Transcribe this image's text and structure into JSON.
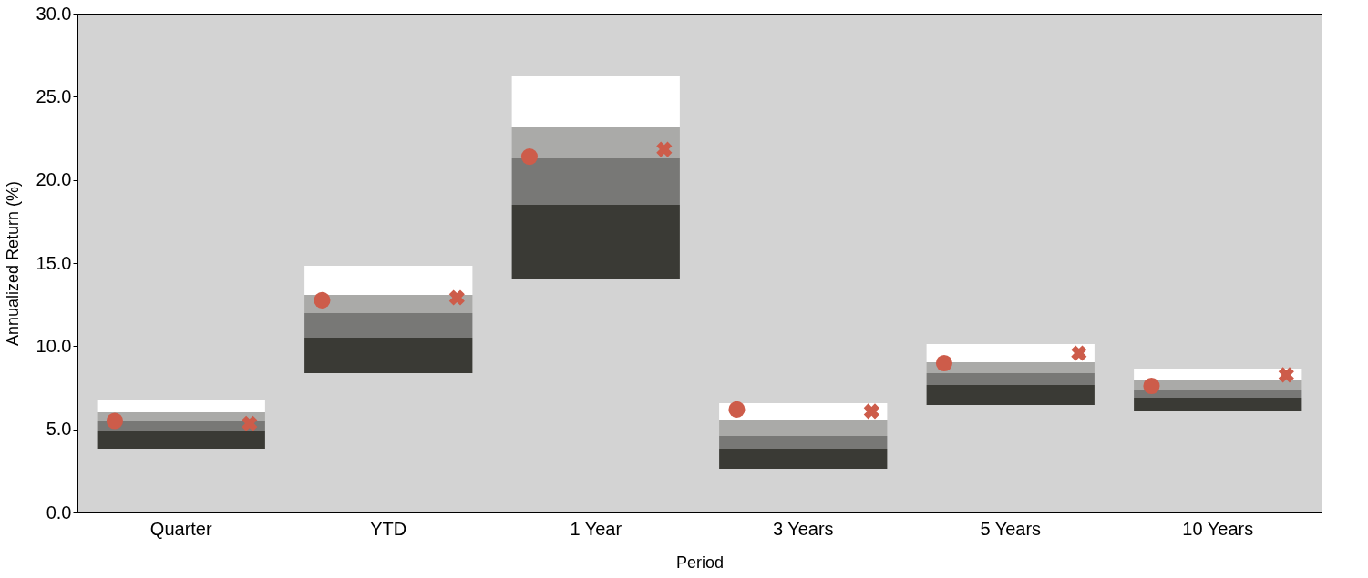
{
  "chart_data": {
    "type": "bar",
    "xlabel": "Period",
    "ylabel": "Annualized Return (%)",
    "categories": [
      "Quarter",
      "YTD",
      "1 Year",
      "3 Years",
      "5 Years",
      "10 Years"
    ],
    "series": [
      {
        "color": "#3a3a35",
        "base": [
          3.83,
          8.38,
          14.07,
          2.63,
          6.46,
          6.08
        ],
        "values": [
          1.04,
          2.13,
          4.43,
          1.2,
          1.2,
          0.82
        ]
      },
      {
        "color": "#787876",
        "base": [
          4.87,
          10.51,
          18.5,
          3.83,
          7.66,
          6.9
        ],
        "values": [
          0.66,
          1.48,
          2.8,
          0.77,
          0.72,
          0.49
        ]
      },
      {
        "color": "#aaaaa8",
        "base": [
          5.53,
          11.99,
          21.3,
          4.6,
          8.38,
          7.39
        ],
        "values": [
          0.49,
          1.09,
          1.86,
          0.98,
          0.65,
          0.55
        ]
      },
      {
        "color": "#ffffff",
        "base": [
          6.02,
          13.08,
          23.16,
          5.58,
          9.03,
          7.94
        ],
        "values": [
          0.77,
          1.76,
          3.06,
          0.99,
          1.1,
          0.71
        ]
      },
      {
        "type": "scatter",
        "marker": "circle",
        "color": "#cd5c4a",
        "x": [
          "Quarter",
          "YTD",
          "1 Year",
          "3 Years",
          "5 Years",
          "10 Years"
        ],
        "values": [
          5.5,
          12.76,
          21.4,
          6.19,
          8.98,
          7.61
        ]
      },
      {
        "type": "scatter",
        "marker": "cross",
        "color": "#cd5c4a",
        "x": [
          "Quarter",
          "YTD",
          "1 Year",
          "3 Years",
          "5 Years",
          "10 Years"
        ],
        "values": [
          5.35,
          12.92,
          21.84,
          6.08,
          9.58,
          8.27
        ]
      }
    ],
    "ylim": [
      0,
      30
    ],
    "yticks": [
      {
        "value": 0,
        "label": "0.0"
      },
      {
        "value": 5,
        "label": "5.0"
      },
      {
        "value": 10,
        "label": "10.0"
      },
      {
        "value": 15,
        "label": "15.0"
      },
      {
        "value": 20,
        "label": "20.0"
      },
      {
        "value": 25,
        "label": "25.0"
      },
      {
        "value": 30,
        "label": "30.0"
      }
    ],
    "grid": false,
    "legend": false
  }
}
